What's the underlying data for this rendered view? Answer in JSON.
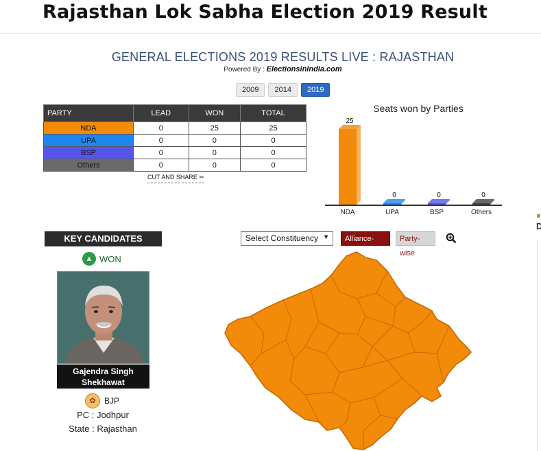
{
  "header": {
    "title": "Rajasthan Lok Sabha Election 2019 Result",
    "subtitle": "GENERAL ELECTIONS 2019 RESULTS LIVE : RAJASTHAN",
    "powered_by_label": "Powered By :",
    "powered_by_brand": "ElectionsinIndia",
    "powered_by_suffix": ".com"
  },
  "year_tabs": [
    {
      "label": "2009",
      "active": false
    },
    {
      "label": "2014",
      "active": false
    },
    {
      "label": "2019",
      "active": true
    }
  ],
  "results_table": {
    "headers": [
      "PARTY",
      "LEAD",
      "WON",
      "TOTAL"
    ],
    "rows": [
      {
        "party": "NDA",
        "lead": "0",
        "won": "25",
        "total": "25",
        "color": "#f28a0a"
      },
      {
        "party": "UPA",
        "lead": "0",
        "won": "0",
        "total": "0",
        "color": "#1f86f0"
      },
      {
        "party": "BSP",
        "lead": "0",
        "won": "0",
        "total": "0",
        "color": "#5555ee"
      },
      {
        "party": "Others",
        "lead": "0",
        "won": "0",
        "total": "0",
        "color": "#6a6a6a"
      }
    ],
    "cut_share_label": "CUT AND SHARE",
    "cut_share_icon": "scissors-icon"
  },
  "chart_data": {
    "type": "bar",
    "title": "Seats won by Parties",
    "categories": [
      "NDA",
      "UPA",
      "BSP",
      "Others"
    ],
    "values": [
      25,
      0,
      0,
      0
    ],
    "colors": [
      "#f28a0a",
      "#1f86f0",
      "#5555ee",
      "#444444"
    ],
    "ylim": [
      0,
      25
    ],
    "xlabel": "",
    "ylabel": "",
    "grid": false
  },
  "key_candidates": {
    "heading": "KEY CANDIDATES",
    "status": "WON",
    "status_icon": "chevron-up-icon",
    "name_line1": "Gajendra Singh",
    "name_line2": "Shekhawat",
    "party": "BJP",
    "party_icon": "lotus-icon",
    "pc": "PC : Jodhpur",
    "state": "State : Rajasthan"
  },
  "map_controls": {
    "constituency_placeholder": "Select Constituency",
    "alliance_wise": "Alliance-wise",
    "party_wise": "Party-wise",
    "zoom_icon": "zoom-in-icon"
  },
  "map": {
    "fill_color": "#f28a0a",
    "border_color": "#c86a00"
  },
  "right_panel": {
    "letter": "D"
  }
}
